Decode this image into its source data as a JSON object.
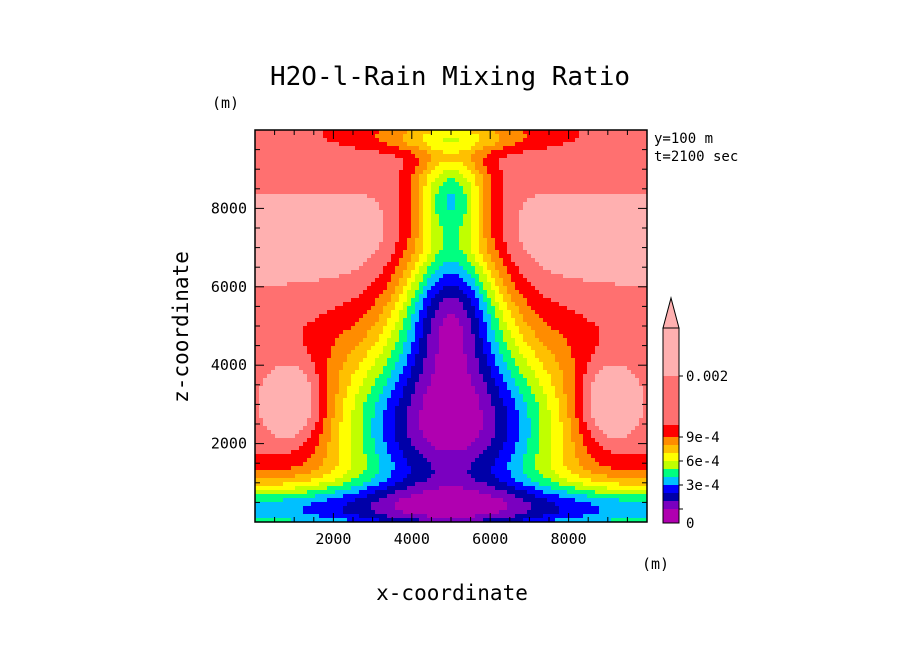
{
  "chart_data": {
    "type": "heatmap",
    "title": "H2O-l-Rain Mixing Ratio",
    "xlabel": "x-coordinate",
    "ylabel": "z-coordinate",
    "x_unit": "(m)",
    "y_unit": "(m)",
    "xlim": [
      0,
      10000
    ],
    "ylim": [
      0,
      10000
    ],
    "x_ticks": [
      2000,
      4000,
      6000,
      8000
    ],
    "y_ticks": [
      2000,
      4000,
      6000,
      8000
    ],
    "info": [
      "y=100 m",
      "t=2100 sec"
    ],
    "colorbar": {
      "levels": [
        "0",
        "1e-4",
        "2e-4",
        "3e-4",
        "4e-4",
        "5e-4",
        "6e-4",
        "7e-4",
        "8e-4",
        "9e-4",
        "0.001",
        "0.002"
      ],
      "labels": [
        {
          "value": 0,
          "text": "0"
        },
        {
          "value": 3,
          "text": "3e-4"
        },
        {
          "value": 6,
          "text": "6e-4"
        },
        {
          "value": 9,
          "text": "9e-4"
        },
        {
          "value": 11,
          "text": "0.002"
        }
      ],
      "colors": [
        "#b000b0",
        "#7a00c0",
        "#0000a8",
        "#0000ff",
        "#00c0ff",
        "#00ff80",
        "#c0ff00",
        "#ffff00",
        "#ffc000",
        "#ff8c00",
        "#ff0000",
        "#ff7070",
        "#ffb0b0"
      ],
      "extend": "max"
    }
  }
}
